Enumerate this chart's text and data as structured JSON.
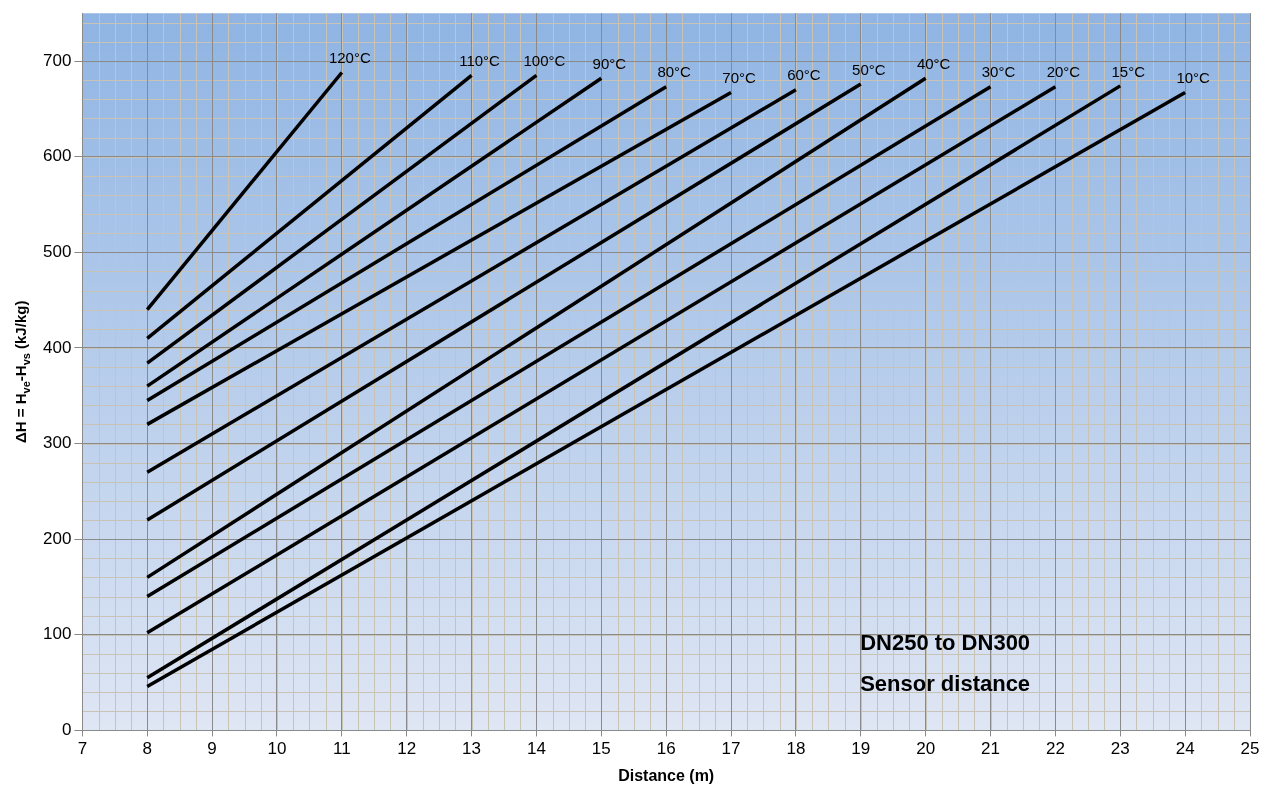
{
  "chart_data": {
    "type": "line",
    "xlabel": "Distance (m)",
    "ylabel": "ΔH = H$_{ve}$-H$_{vs}$ (kJ/kg)",
    "xlim": [
      7,
      25
    ],
    "xticks": [
      7,
      8,
      9,
      10,
      11,
      12,
      13,
      14,
      15,
      16,
      17,
      18,
      19,
      20,
      21,
      22,
      23,
      24,
      25
    ],
    "ylim": [
      0,
      750
    ],
    "yticks": [
      0,
      100,
      200,
      300,
      400,
      500,
      600,
      700
    ],
    "grid": true,
    "legend": false,
    "marker": "none",
    "line_style": "solid",
    "annotations": [
      "DN250 to DN300",
      "Sensor distance"
    ],
    "series": [
      {
        "name": "120°C",
        "color": "#000000",
        "x": [
          8,
          11
        ],
        "values": [
          440,
          688
        ]
      },
      {
        "name": "110°C",
        "color": "#000000",
        "x": [
          8,
          13
        ],
        "values": [
          410,
          685
        ]
      },
      {
        "name": "100°C",
        "color": "#000000",
        "x": [
          8,
          14
        ],
        "values": [
          384,
          685
        ]
      },
      {
        "name": "90°C",
        "color": "#000000",
        "x": [
          8,
          15
        ],
        "values": [
          360,
          682
        ]
      },
      {
        "name": "80°C",
        "color": "#000000",
        "x": [
          8,
          16
        ],
        "values": [
          345,
          673
        ]
      },
      {
        "name": "70°C",
        "color": "#000000",
        "x": [
          8,
          17
        ],
        "values": [
          320,
          667
        ]
      },
      {
        "name": "60°C",
        "color": "#000000",
        "x": [
          8,
          18
        ],
        "values": [
          270,
          670
        ]
      },
      {
        "name": "50°C",
        "color": "#000000",
        "x": [
          8,
          19
        ],
        "values": [
          220,
          676
        ]
      },
      {
        "name": "40°C",
        "color": "#000000",
        "x": [
          8,
          20
        ],
        "values": [
          160,
          682
        ]
      },
      {
        "name": "30°C",
        "color": "#000000",
        "x": [
          8,
          21
        ],
        "values": [
          140,
          673
        ]
      },
      {
        "name": "20°C",
        "color": "#000000",
        "x": [
          8,
          22
        ],
        "values": [
          102,
          673
        ]
      },
      {
        "name": "15°C",
        "color": "#000000",
        "x": [
          8,
          23
        ],
        "values": [
          55,
          674
        ]
      },
      {
        "name": "10°C",
        "color": "#000000",
        "x": [
          8,
          24
        ],
        "values": [
          46,
          667
        ]
      }
    ]
  }
}
